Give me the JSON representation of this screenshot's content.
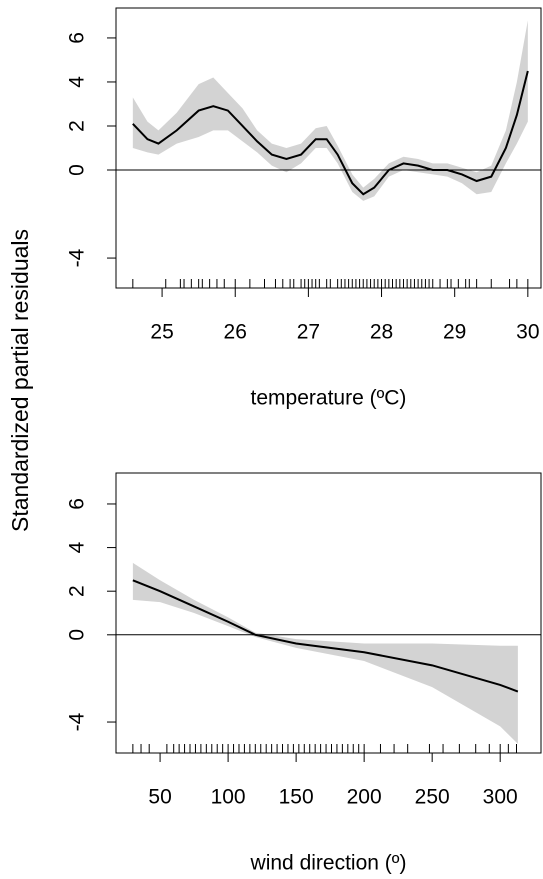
{
  "chart_data": [
    {
      "type": "line",
      "ylabel": "Standardized partial residuals",
      "xlabel": "temperature (ºC)",
      "x": [
        24.6,
        24.8,
        24.95,
        25.2,
        25.5,
        25.7,
        25.9,
        26.1,
        26.3,
        26.5,
        26.7,
        26.9,
        27.1,
        27.25,
        27.4,
        27.6,
        27.75,
        27.9,
        28.1,
        28.3,
        28.5,
        28.7,
        28.9,
        29.1,
        29.3,
        29.5,
        29.7,
        29.85,
        30.0
      ],
      "values": [
        2.1,
        1.4,
        1.2,
        1.8,
        2.7,
        2.9,
        2.7,
        2.0,
        1.3,
        0.7,
        0.5,
        0.7,
        1.4,
        1.4,
        0.7,
        -0.6,
        -1.1,
        -0.8,
        0.0,
        0.3,
        0.2,
        0.0,
        0.0,
        -0.2,
        -0.5,
        -0.3,
        1.0,
        2.5,
        4.5
      ],
      "lower": [
        1.0,
        0.8,
        0.7,
        1.2,
        1.5,
        1.8,
        1.8,
        1.3,
        0.8,
        0.2,
        -0.1,
        0.3,
        1.0,
        1.0,
        0.3,
        -1.0,
        -1.4,
        -1.2,
        -0.3,
        0.0,
        -0.1,
        -0.2,
        -0.3,
        -0.6,
        -1.1,
        -1.0,
        0.3,
        1.2,
        2.2
      ],
      "upper": [
        3.3,
        2.2,
        1.8,
        2.6,
        3.9,
        4.2,
        3.5,
        2.8,
        1.8,
        1.2,
        1.0,
        1.2,
        1.9,
        2.0,
        1.1,
        -0.2,
        -0.8,
        -0.4,
        0.3,
        0.6,
        0.5,
        0.3,
        0.3,
        0.1,
        -0.1,
        0.2,
        1.8,
        4.0,
        6.8
      ],
      "color": "#000000",
      "band_color": "#d3d3d3",
      "hline": 0,
      "rug": [
        24.6,
        25.05,
        25.25,
        25.3,
        25.4,
        25.5,
        25.55,
        25.65,
        25.75,
        25.85,
        26.0,
        26.2,
        26.4,
        26.55,
        26.65,
        26.75,
        26.8,
        26.9,
        26.95,
        27.0,
        27.05,
        27.1,
        27.15,
        27.25,
        27.3,
        27.4,
        27.45,
        27.5,
        27.55,
        27.6,
        27.65,
        27.7,
        27.75,
        27.8,
        27.85,
        27.9,
        27.95,
        28.0,
        28.05,
        28.1,
        28.15,
        28.2,
        28.25,
        28.3,
        28.35,
        28.4,
        28.45,
        28.5,
        28.55,
        28.6,
        28.65,
        28.7,
        28.8,
        28.9,
        28.95,
        29.05,
        29.15,
        29.2,
        29.3,
        29.5,
        29.75,
        29.85,
        30.0
      ],
      "xlim": [
        24.37,
        30.18
      ],
      "ylim": [
        -5.36,
        7.36
      ],
      "xticks": [
        25,
        26,
        27,
        28,
        29,
        30
      ],
      "yticks": [
        -4,
        0,
        2,
        4,
        6
      ]
    },
    {
      "type": "line",
      "xlabel": "wind direction (º)",
      "x": [
        30,
        50,
        75,
        100,
        120,
        150,
        200,
        250,
        300,
        313
      ],
      "values": [
        2.5,
        2.0,
        1.3,
        0.6,
        0.0,
        -0.4,
        -0.8,
        -1.4,
        -2.3,
        -2.6
      ],
      "lower": [
        1.6,
        1.5,
        1.0,
        0.4,
        -0.1,
        -0.6,
        -1.2,
        -2.4,
        -4.2,
        -5.0
      ],
      "upper": [
        3.3,
        2.5,
        1.6,
        0.8,
        0.1,
        -0.2,
        -0.4,
        -0.4,
        -0.5,
        -0.5
      ],
      "color": "#000000",
      "band_color": "#d3d3d3",
      "hline": 0,
      "rug": [
        30,
        36,
        42,
        55,
        60,
        64,
        68,
        72,
        76,
        80,
        84,
        88,
        92,
        96,
        100,
        104,
        108,
        112,
        116,
        120,
        124,
        128,
        132,
        136,
        140,
        144,
        148,
        152,
        156,
        160,
        164,
        168,
        172,
        176,
        180,
        184,
        188,
        192,
        196,
        200,
        212,
        222,
        232,
        248,
        258,
        270,
        282,
        292,
        300,
        306,
        312
      ],
      "xlim": [
        17.6,
        330
      ],
      "ylim": [
        -5.42,
        7.42
      ],
      "xticks": [
        50,
        100,
        150,
        200,
        250,
        300
      ],
      "yticks": [
        -4,
        0,
        2,
        4,
        6
      ]
    }
  ]
}
